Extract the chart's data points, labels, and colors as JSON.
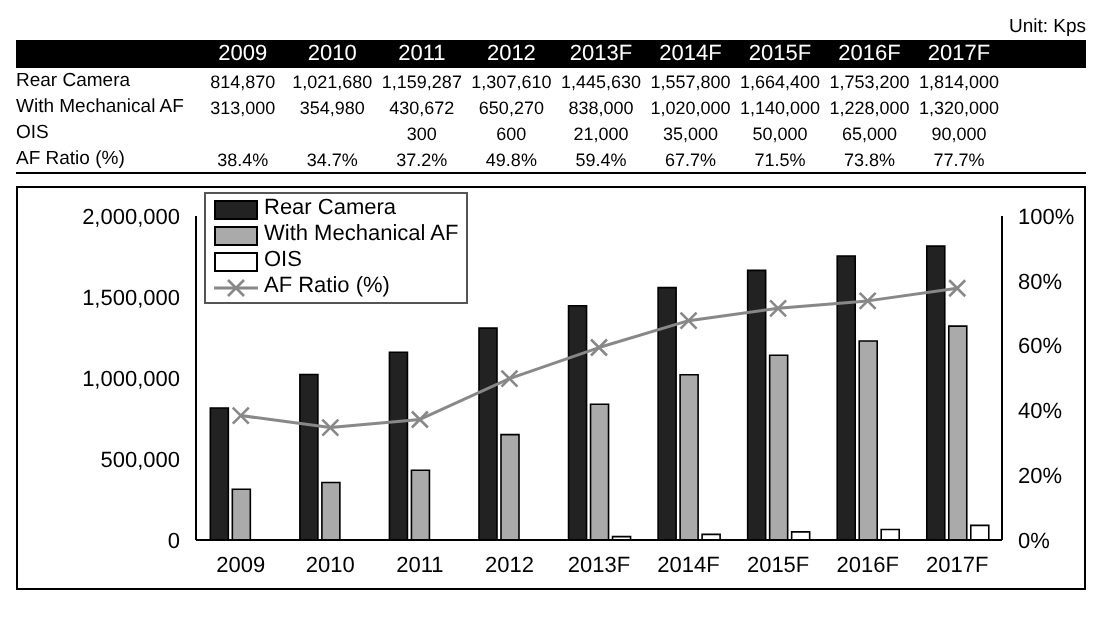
{
  "chart_data": {
    "type": "bar",
    "categories": [
      "2009",
      "2010",
      "2011",
      "2012",
      "2013F",
      "2014F",
      "2015F",
      "2016F",
      "2017F"
    ],
    "series": [
      {
        "name": "Rear Camera",
        "color": "#222222",
        "values": [
          814870,
          1021680,
          1159287,
          1307610,
          1445630,
          1557800,
          1664400,
          1753200,
          1814000
        ],
        "value_labels": [
          "814,870",
          "1,021,680",
          "1,159,287",
          "1,307,610",
          "1,445,630",
          "1,557,800",
          "1,664,400",
          "1,753,200",
          "1,814,000"
        ]
      },
      {
        "name": "With Mechanical AF",
        "color": "#aaaaaa",
        "values": [
          313000,
          354980,
          430672,
          650270,
          838000,
          1020000,
          1140000,
          1228000,
          1320000
        ],
        "value_labels": [
          "313,000",
          "354,980",
          "430,672",
          "650,270",
          "838,000",
          "1,020,000",
          "1,140,000",
          "1,228,000",
          "1,320,000"
        ]
      },
      {
        "name": "OIS",
        "color": "#ffffff",
        "values": [
          null,
          null,
          300,
          600,
          21000,
          35000,
          50000,
          65000,
          90000
        ],
        "value_labels": [
          null,
          null,
          "300",
          "600",
          "21,000",
          "35,000",
          "50,000",
          "65,000",
          "90,000"
        ]
      },
      {
        "name": "AF Ratio  (%)",
        "type": "line",
        "axis": "y2",
        "color": "#888888",
        "marker": "cross",
        "values": [
          38.4,
          34.7,
          37.2,
          49.8,
          59.4,
          67.7,
          71.5,
          73.8,
          77.7
        ],
        "value_labels": [
          "38.4%",
          "34.7%",
          "37.2%",
          "49.8%",
          "59.4%",
          "67.7%",
          "71.5%",
          "73.8%",
          "77.7%"
        ]
      }
    ],
    "ylim": [
      0,
      2000000
    ],
    "yticks": [
      0,
      {
        "value": 500000,
        "label": "500,000"
      },
      {
        "value": 1000000,
        "label": "1,000,000"
      },
      {
        "value": 1500000,
        "label": "1,500,000"
      },
      {
        "value": 2000000,
        "label": "2,000,000"
      }
    ],
    "y2lim": [
      0,
      100
    ],
    "y2ticks": [
      {
        "value": 0,
        "label": "0%"
      },
      {
        "value": 20,
        "label": "20%"
      },
      {
        "value": 40,
        "label": "40%"
      },
      {
        "value": 60,
        "label": "60%"
      },
      {
        "value": 80,
        "label": "80%"
      },
      {
        "value": 100,
        "label": "100%"
      }
    ],
    "legend": "top left",
    "grid": false,
    "annotations": [
      "Unit: Kps"
    ]
  }
}
